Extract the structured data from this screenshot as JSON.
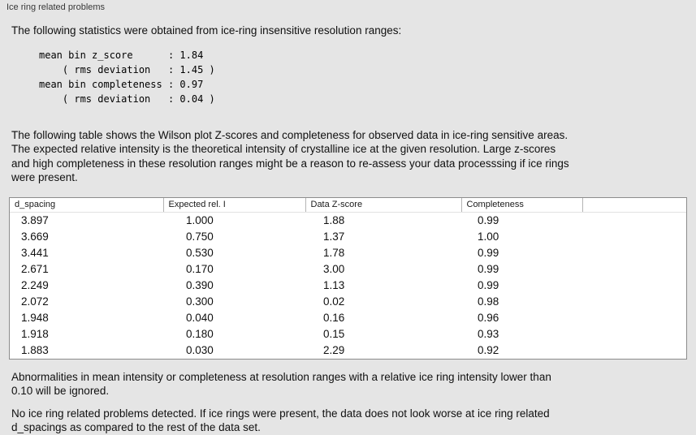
{
  "panel": {
    "title": "Ice ring related problems"
  },
  "colors": {
    "panel_bg": "#e5e5e5",
    "table_bg": "#ffffff",
    "table_border": "#8c8c8c"
  },
  "stats": {
    "intro": "The following statistics were obtained from ice-ring insensitive resolution ranges:",
    "lines": [
      "mean bin z_score      : 1.84",
      "    ( rms deviation   : 1.45 )",
      "mean bin completeness : 0.97",
      "    ( rms deviation   : 0.04 )"
    ]
  },
  "table_section": {
    "description": "The following table shows the Wilson plot Z-scores and completeness for observed data in ice-ring sensitive areas.\nThe expected relative intensity is the theoretical intensity of crystalline ice at the given resolution. Large z-scores\nand high completeness in these resolution ranges might be a reason to re-assess your data processsing if ice rings\nwere present.",
    "table": {
      "columns": [
        "d_spacing",
        "Expected rel. I",
        "Data Z-score",
        "Completeness"
      ],
      "rows": [
        [
          "3.897",
          "1.000",
          "1.88",
          "0.99"
        ],
        [
          "3.669",
          "0.750",
          "1.37",
          "1.00"
        ],
        [
          "3.441",
          "0.530",
          "1.78",
          "0.99"
        ],
        [
          "2.671",
          "0.170",
          "3.00",
          "0.99"
        ],
        [
          "2.249",
          "0.390",
          "1.13",
          "0.99"
        ],
        [
          "2.072",
          "0.300",
          "0.02",
          "0.98"
        ],
        [
          "1.948",
          "0.040",
          "0.16",
          "0.96"
        ],
        [
          "1.918",
          "0.180",
          "0.15",
          "0.93"
        ],
        [
          "1.883",
          "0.030",
          "2.29",
          "0.92"
        ]
      ]
    }
  },
  "notes": {
    "ignore_rule": "Abnormalities in mean intensity or completeness at resolution ranges with a relative ice ring intensity lower than\n0.10 will be ignored.",
    "conclusion": "No ice ring related problems detected. If ice rings were present, the data does not look worse at ice ring related\nd_spacings as compared to the rest of the data set."
  }
}
